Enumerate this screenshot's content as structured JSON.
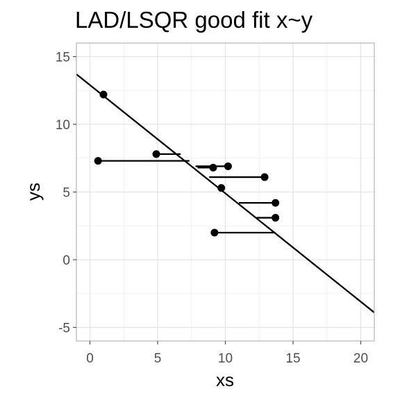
{
  "chart_data": {
    "type": "scatter",
    "title": "LAD/LSQR good fit x~y",
    "xlabel": "xs",
    "ylabel": "ys",
    "xlim": [
      -1,
      21
    ],
    "ylim": [
      -6,
      16
    ],
    "x_ticks": [
      0,
      5,
      10,
      15,
      20
    ],
    "y_ticks": [
      -5,
      0,
      5,
      10,
      15
    ],
    "grid": true,
    "points": [
      {
        "x": 1.0,
        "y": 12.2
      },
      {
        "x": 0.6,
        "y": 7.3
      },
      {
        "x": 4.9,
        "y": 7.8
      },
      {
        "x": 9.1,
        "y": 6.8
      },
      {
        "x": 10.2,
        "y": 6.9
      },
      {
        "x": 12.9,
        "y": 6.1
      },
      {
        "x": 9.7,
        "y": 5.3
      },
      {
        "x": 13.7,
        "y": 4.2
      },
      {
        "x": 13.7,
        "y": 3.1
      },
      {
        "x": 9.2,
        "y": 2.0
      }
    ],
    "fit_line": {
      "x": [
        -1,
        21
      ],
      "y": [
        13.7,
        -3.9
      ]
    },
    "residual_segments": [
      {
        "from_x": 0.6,
        "to_x": 7.35,
        "y": 7.3
      },
      {
        "from_x": 4.9,
        "to_x": 6.7,
        "y": 7.8
      },
      {
        "from_x": 9.1,
        "to_x": 7.95,
        "y": 6.8
      },
      {
        "from_x": 10.2,
        "to_x": 7.8,
        "y": 6.9
      },
      {
        "from_x": 12.9,
        "to_x": 8.8,
        "y": 6.1
      },
      {
        "from_x": 9.7,
        "to_x": 9.75,
        "y": 5.3
      },
      {
        "from_x": 13.7,
        "to_x": 11.0,
        "y": 4.2
      },
      {
        "from_x": 13.7,
        "to_x": 12.3,
        "y": 3.1
      },
      {
        "from_x": 9.2,
        "to_x": 13.7,
        "y": 2.0
      }
    ]
  }
}
